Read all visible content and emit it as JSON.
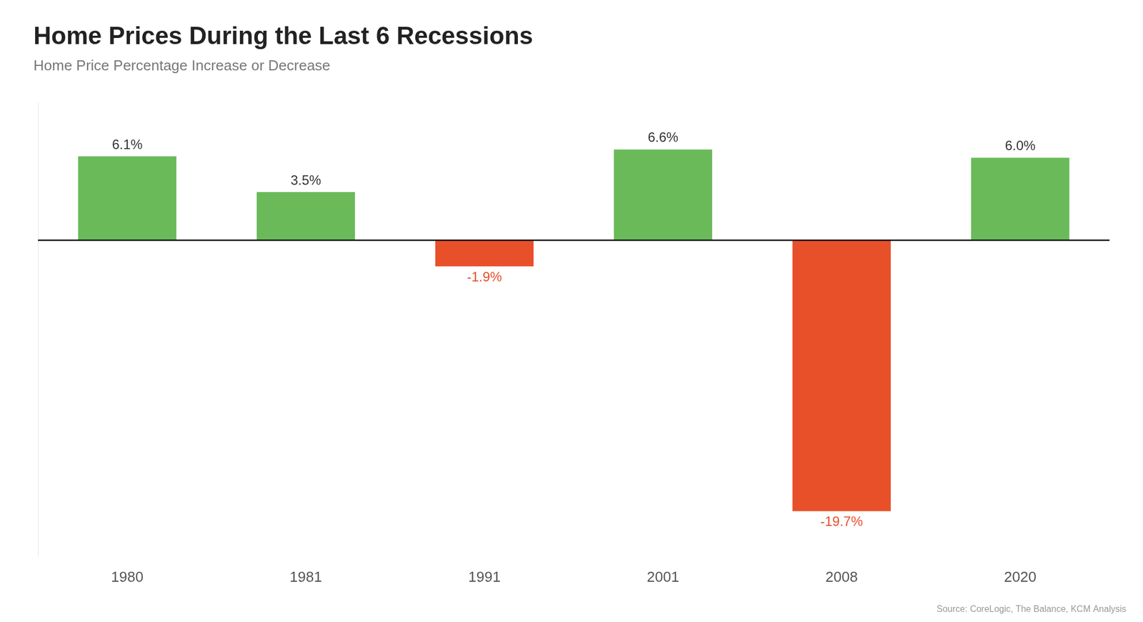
{
  "chart_data": {
    "type": "bar",
    "title": "Home Prices During the Last 6 Recessions",
    "subtitle": "Home Price Percentage Increase or Decrease",
    "annotations": [
      "Source: CoreLogic, The Balance, KCM Analysis"
    ],
    "categories": [
      "1980",
      "1981",
      "1991",
      "2001",
      "2008",
      "2020"
    ],
    "values": [
      6.1,
      3.5,
      -1.9,
      6.6,
      -19.7,
      6.0
    ],
    "value_labels": [
      "6.1%",
      "3.5%",
      "-1.9%",
      "6.6%",
      "-19.7%",
      "6.0%"
    ],
    "colors": [
      "#6aba5a",
      "#6aba5a",
      "#e8502a",
      "#6aba5a",
      "#e8502a",
      "#6aba5a"
    ],
    "ylim": [
      -23,
      10
    ],
    "grid": false,
    "data_labels": true,
    "tick_labels": "x"
  }
}
